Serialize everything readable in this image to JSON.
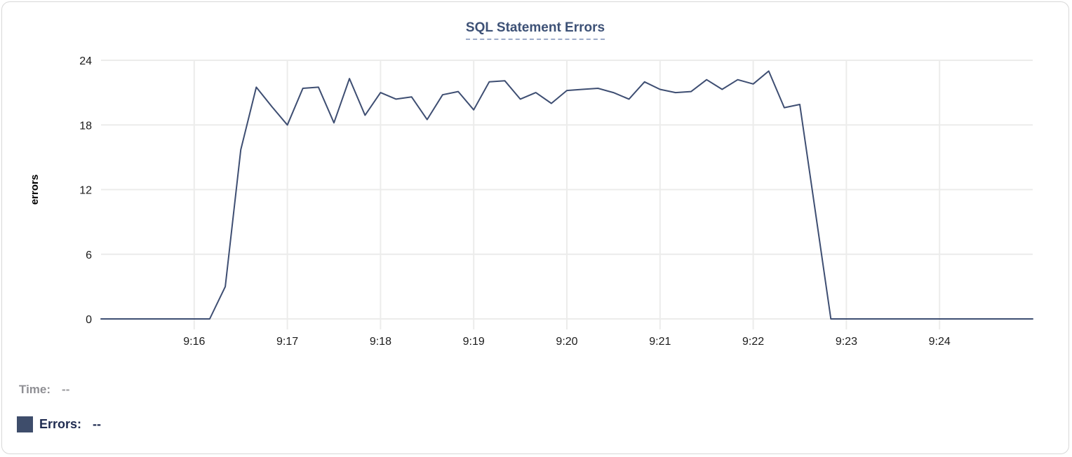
{
  "chart_data": {
    "type": "line",
    "title": "SQL Statement Errors",
    "ylabel": "errors",
    "xlabel": "",
    "ylim": [
      0,
      24
    ],
    "y_ticks": [
      0,
      6,
      12,
      18,
      24
    ],
    "x_tick_labels": [
      "9:16",
      "9:17",
      "9:18",
      "9:19",
      "9:20",
      "9:21",
      "9:22",
      "9:23",
      "9:24"
    ],
    "x_start": "9:15:00",
    "x_end": "9:25:00",
    "sample_interval_seconds": 10,
    "grid": true,
    "legend_position": "none",
    "series": [
      {
        "name": "Errors",
        "color": "#3e4e72",
        "values": [
          0,
          0,
          0,
          0,
          0,
          0,
          0,
          0,
          3,
          15.7,
          21.5,
          19.7,
          18,
          21.4,
          21.5,
          18.2,
          22.3,
          18.9,
          21,
          20.4,
          20.6,
          18.5,
          20.8,
          21.1,
          19.4,
          22,
          22.1,
          20.4,
          21,
          20,
          21.2,
          21.3,
          21.4,
          21,
          20.4,
          22,
          21.3,
          21,
          21.1,
          22.2,
          21.3,
          22.2,
          21.8,
          23,
          19.6,
          19.9,
          10,
          0,
          0,
          0,
          0,
          0,
          0,
          0,
          0,
          0,
          0,
          0,
          0,
          0,
          0
        ]
      }
    ]
  },
  "tooltip_legend": {
    "time_label": "Time:",
    "time_value": "--",
    "errors_label": "Errors:",
    "errors_value": "--",
    "swatch_color": "#3e4d6b"
  },
  "colors": {
    "title": "#3d5176",
    "title_underline": "#9dabc9",
    "line": "#3e4e72",
    "gridline": "#ececeb",
    "tick_text": "#1b1b1b",
    "time_text": "#8f8f94",
    "errors_text": "#1f2b50",
    "card_border": "#d8d8d8"
  }
}
